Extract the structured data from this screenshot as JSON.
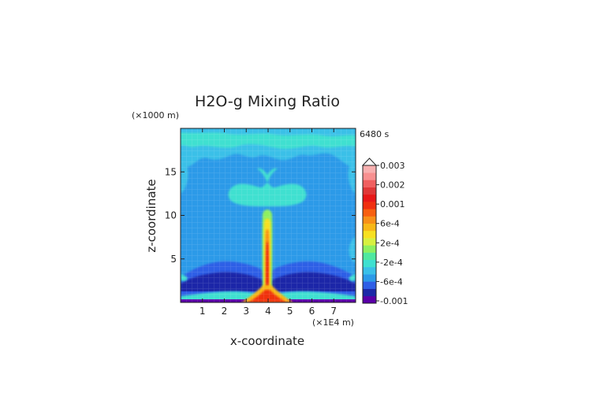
{
  "chart_data": {
    "type": "heatmap",
    "title": "H2O-g Mixing Ratio",
    "xlabel": "x-coordinate",
    "ylabel": "z-coordinate",
    "x_unit": "(×1E4 m)",
    "y_unit": "(×1000 m)",
    "time_label": "6480 s",
    "xlim": [
      0,
      8
    ],
    "ylim": [
      0,
      20
    ],
    "x_ticks": [
      1,
      2,
      3,
      4,
      5,
      6,
      7
    ],
    "y_ticks": [
      5,
      10,
      15
    ],
    "colorbar": {
      "labels": [
        "0.003",
        "0.002",
        "0.001",
        "6e-4",
        "2e-4",
        "-2e-4",
        "-6e-4",
        "-0.001"
      ],
      "colors": [
        "#5a00a8",
        "#1c28a8",
        "#2f5fe6",
        "#2c9ae8",
        "#3ac0e8",
        "#3fe0d0",
        "#4fe8a0",
        "#8ef060",
        "#d8f040",
        "#f8e020",
        "#f8b818",
        "#f89018",
        "#f86010",
        "#f03010",
        "#e81818",
        "#e03838",
        "#f06060",
        "#f89090",
        "#f8b0b0"
      ]
    }
  }
}
